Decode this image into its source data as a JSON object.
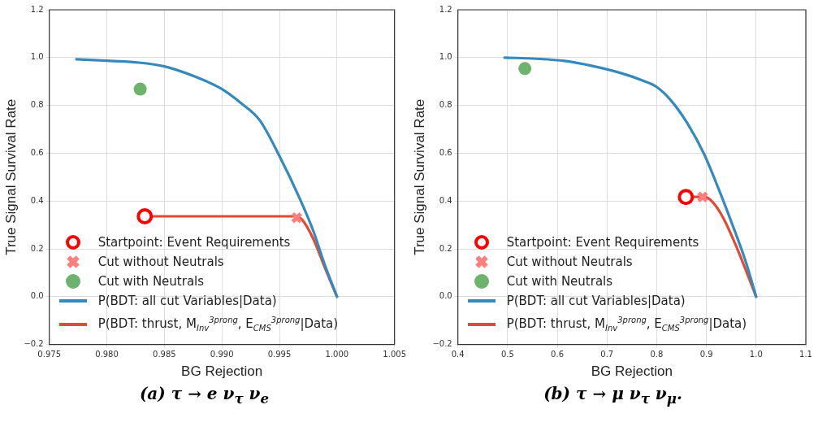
{
  "chart_data": [
    {
      "type": "line",
      "title": "(a) τ → e ν$_{τ}$ ν$_{e}$",
      "xlabel": "BG Rejection",
      "ylabel": "True Signal Survival Rate",
      "xlim": [
        0.975,
        1.005
      ],
      "xticks": [
        0.975,
        {
          "value": 0.98,
          "label": "0.980"
        },
        0.985,
        {
          "value": 0.99,
          "label": "0.990"
        },
        0.995,
        {
          "value": 1,
          "label": "1.000"
        },
        1.005
      ],
      "ylim": [
        -0.2,
        1.2
      ],
      "yticks": [
        {
          "value": -0.2,
          "label": "−0.2"
        },
        {
          "value": 0,
          "label": "0.0"
        },
        0.2,
        0.4,
        0.6,
        0.8,
        {
          "value": 1,
          "label": "1.0"
        },
        1.2
      ],
      "grid": true,
      "legend": "bottom left",
      "series": [
        {
          "name": "Startpoint: Event Requirements",
          "type": "scatter",
          "marker": "circle",
          "color": "#ff0000",
          "x": [
            0.9833
          ],
          "values": [
            0.336
          ]
        },
        {
          "name": "Cut without Neutrals",
          "type": "scatter",
          "marker": "cross",
          "color": "#ff7f7f",
          "x": [
            0.9965
          ],
          "values": [
            0.33
          ]
        },
        {
          "name": "Cut with Neutrals",
          "type": "scatter",
          "marker": "circle",
          "color": "#6db36d",
          "x": [
            0.9829
          ],
          "values": [
            0.868
          ]
        },
        {
          "name": "P(BDT: all cut Variables|Data)",
          "color": "#348abd",
          "x": [
            0.97735,
            0.98033,
            0.98278,
            0.985,
            0.98768,
            0.9899,
            0.99159,
            0.9933,
            0.99502,
            0.99673,
            0.99795,
            0.99893,
            1.0
          ],
          "values": [
            0.993,
            0.986,
            0.979,
            0.963,
            0.92,
            0.871,
            0.812,
            0.737,
            0.586,
            0.414,
            0.274,
            0.134,
            0.0
          ]
        },
        {
          "name": "P(BDT: thrust, M$_{Inv}$$^{3prong}$, E$_{CMS}$$^{3prong}$|Data)",
          "color": "#e24a33",
          "x": [
            0.98327,
            0.99648,
            0.99697,
            0.99795,
            0.99893,
            1.0
          ],
          "values": [
            0.336,
            0.336,
            0.322,
            0.241,
            0.123,
            0.0
          ]
        }
      ]
    },
    {
      "type": "line",
      "title": "(b) τ → μ ν$_{τ}$ ν$_{μ}$.",
      "xlabel": "BG Rejection",
      "ylabel": "True Signal Survival Rate",
      "xlim": [
        0.4,
        1.1
      ],
      "xticks": [
        0.4,
        0.5,
        0.6,
        0.7,
        0.8,
        0.9,
        {
          "value": 1,
          "label": "1.0"
        },
        1.1
      ],
      "ylim": [
        -0.2,
        1.2
      ],
      "yticks": [
        {
          "value": -0.2,
          "label": "−0.2"
        },
        {
          "value": 0,
          "label": "0.0"
        },
        0.2,
        0.4,
        0.6,
        0.8,
        {
          "value": 1,
          "label": "1.0"
        },
        1.2
      ],
      "grid": true,
      "legend": "bottom left",
      "series": [
        {
          "name": "Startpoint: Event Requirements",
          "type": "scatter",
          "marker": "circle",
          "color": "#ff0000",
          "x": [
            0.8587
          ],
          "values": [
            0.417
          ]
        },
        {
          "name": "Cut without Neutrals",
          "type": "scatter",
          "marker": "cross",
          "color": "#ff7f7f",
          "x": [
            0.8924
          ],
          "values": [
            0.417
          ]
        },
        {
          "name": "Cut with Neutrals",
          "type": "scatter",
          "marker": "circle",
          "color": "#6db36d",
          "x": [
            0.5348
          ],
          "values": [
            0.954
          ]
        },
        {
          "name": "P(BDT: all cut Variables|Data)",
          "color": "#348abd",
          "x": [
            0.4938,
            0.558,
            0.6145,
            0.6706,
            0.7268,
            0.7717,
            0.8,
            0.8278,
            0.8615,
            0.8952,
            0.9233,
            0.9514,
            0.9795,
            1.0
          ],
          "values": [
            1.0,
            0.995,
            0.986,
            0.965,
            0.936,
            0.904,
            0.877,
            0.823,
            0.726,
            0.597,
            0.457,
            0.306,
            0.144,
            0.0
          ]
        },
        {
          "name": "P(BDT: thrust, M$_{Inv}$$^{3prong}$, E$_{CMS}$$^{3prong}$|Data)",
          "color": "#e24a33",
          "x": [
            0.8587,
            0.8952,
            0.912,
            0.9345,
            0.9626,
            0.985,
            1.0
          ],
          "values": [
            0.417,
            0.417,
            0.397,
            0.327,
            0.198,
            0.08,
            0.0
          ]
        }
      ]
    }
  ]
}
